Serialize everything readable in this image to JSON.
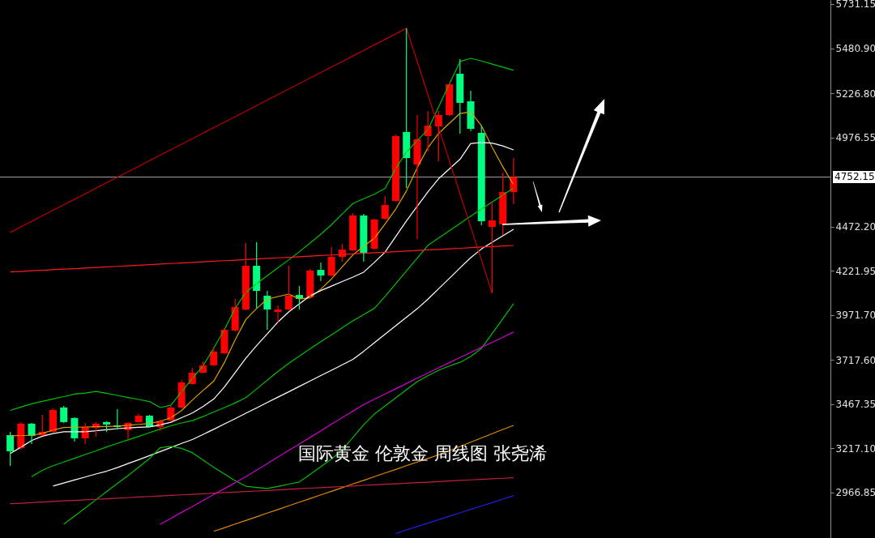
{
  "chart_data": {
    "type": "candlestick",
    "annotations": [
      "国际黄金 伦敦金 周线图 张尧浠"
    ],
    "categories": [
      null,
      null,
      null,
      null,
      null,
      null,
      null,
      null,
      null,
      null,
      null,
      null,
      null,
      null,
      null,
      null,
      null,
      null,
      null,
      null,
      null,
      null,
      null,
      null,
      null,
      null,
      null,
      null,
      null,
      null,
      null,
      null,
      null,
      null,
      null,
      null,
      null,
      null,
      null,
      null,
      null,
      null,
      null,
      null,
      null,
      null,
      null,
      null
    ],
    "ohlc": [
      [
        3292,
        3311,
        3118,
        3201
      ],
      [
        3219,
        3366,
        3210,
        3357
      ],
      [
        3357,
        3361,
        3242,
        3288
      ],
      [
        3292,
        3407,
        3288,
        3311
      ],
      [
        3311,
        3444,
        3305,
        3434
      ],
      [
        3448,
        3457,
        3361,
        3366
      ],
      [
        3389,
        3393,
        3256,
        3274
      ],
      [
        3274,
        3361,
        3242,
        3338
      ],
      [
        3334,
        3366,
        3283,
        3357
      ],
      [
        3366,
        3370,
        3311,
        3352
      ],
      [
        3347,
        3439,
        3324,
        3338
      ],
      [
        3320,
        3366,
        3270,
        3361
      ],
      [
        3366,
        3412,
        3361,
        3402
      ],
      [
        3402,
        3407,
        3334,
        3338
      ],
      [
        3338,
        3379,
        3315,
        3370
      ],
      [
        3375,
        3457,
        3370,
        3448
      ],
      [
        3448,
        3604,
        3444,
        3590
      ],
      [
        3581,
        3673,
        3577,
        3645
      ],
      [
        3645,
        3710,
        3641,
        3687
      ],
      [
        3687,
        3792,
        3683,
        3765
      ],
      [
        3755,
        3897,
        3751,
        3888
      ],
      [
        3884,
        4063,
        3879,
        4017
      ],
      [
        4003,
        4379,
        3998,
        4250
      ],
      [
        4250,
        4383,
        4012,
        4108
      ],
      [
        4081,
        4108,
        3888,
        4003
      ],
      [
        3989,
        4026,
        3930,
        4003
      ],
      [
        4003,
        4250,
        3998,
        4081
      ],
      [
        4085,
        4136,
        4003,
        4063
      ],
      [
        4072,
        4232,
        4068,
        4223
      ],
      [
        4227,
        4269,
        4163,
        4195
      ],
      [
        4195,
        4356,
        4191,
        4300
      ],
      [
        4300,
        4374,
        4273,
        4342
      ],
      [
        4337,
        4548,
        4333,
        4535
      ],
      [
        4535,
        4544,
        4273,
        4324
      ],
      [
        4347,
        4517,
        4342,
        4512
      ],
      [
        4516,
        4645,
        4512,
        4594
      ],
      [
        4617,
        4993,
        4613,
        4984
      ],
      [
        5007,
        5594,
        4691,
        4860
      ],
      [
        4823,
        5103,
        4402,
        4966
      ],
      [
        4984,
        5126,
        4897,
        5043
      ],
      [
        5039,
        5126,
        4842,
        5103
      ],
      [
        5103,
        5286,
        5098,
        5277
      ],
      [
        5337,
        5419,
        4998,
        5172
      ],
      [
        5181,
        5241,
        5011,
        5025
      ],
      [
        5002,
        5043,
        4480,
        4503
      ],
      [
        4470,
        4608,
        4095,
        4507
      ],
      [
        4484,
        4778,
        4425,
        4668
      ],
      [
        4668,
        4860,
        4599,
        4752.15
      ]
    ],
    "colors": [
      "#00ff80",
      "#ff0000",
      "#00ff80",
      "#ff0000",
      "#ff0000",
      "#00ff80",
      "#00ff80",
      "#ff0000",
      "#ff0000",
      "#00ff80",
      "#00ff80",
      "#ff0000",
      "#ff0000",
      "#00ff80",
      "#ff0000",
      "#ff0000",
      "#ff0000",
      "#ff0000",
      "#ff0000",
      "#ff0000",
      "#ff0000",
      "#ff0000",
      "#ff0000",
      "#00ff80",
      "#00ff80",
      "#ff0000",
      "#ff0000",
      "#00ff80",
      "#ff0000",
      "#00ff80",
      "#ff0000",
      "#ff0000",
      "#ff0000",
      "#00ff80",
      "#ff0000",
      "#ff0000",
      "#ff0000",
      "#00ff80",
      "#ff0000",
      "#ff0000",
      "#ff0000",
      "#ff0000",
      "#00ff80",
      "#00ff80",
      "#00ff80",
      "#ff0000",
      "#ff0000",
      "#ff0000"
    ],
    "series": [
      {
        "type": "line",
        "color": "#e0a000",
        "values": [
          3288,
          3290,
          3291,
          3302,
          3321,
          3335,
          3337,
          3338,
          3340,
          3341,
          3343,
          3348,
          3353,
          3358,
          3370,
          3391,
          3431,
          3490,
          3545,
          3597,
          3703,
          3831,
          3946,
          4008,
          4061,
          4076,
          4090,
          4063,
          4069,
          4118,
          4176,
          4244,
          4312,
          4360,
          4406,
          4487,
          4571,
          4674,
          4805,
          4918,
          4999,
          5056,
          5112,
          5121,
          5043,
          4921,
          4810,
          4709
        ]
      },
      {
        "type": "line",
        "color": "#00c000",
        "values": [
          3432,
          3451,
          3469,
          3483,
          3497,
          3510,
          3524,
          3530,
          3539,
          3529,
          3517,
          3505,
          3494,
          3482,
          3448,
          3461,
          3537,
          3612,
          3684,
          3784,
          3889,
          4009,
          4100,
          4148,
          4194,
          4239,
          4283,
          4330,
          4379,
          4428,
          4483,
          4543,
          4602,
          4630,
          4655,
          4688,
          4801,
          4894,
          4958,
          5021,
          5149,
          5278,
          5406,
          5424,
          5409,
          5391,
          5374,
          5357
        ]
      },
      {
        "type": "line",
        "color": "#ffffff",
        "values": [
          3188,
          3224,
          3261,
          3286,
          3301,
          3311,
          3311,
          3311,
          3317,
          3323,
          3329,
          3333,
          3336,
          3339,
          3350,
          3365,
          3391,
          3417,
          3454,
          3496,
          3564,
          3646,
          3727,
          3798,
          3865,
          3932,
          3989,
          4035,
          4081,
          4110,
          4135,
          4161,
          4186,
          4214,
          4269,
          4328,
          4416,
          4504,
          4587,
          4668,
          4743,
          4798,
          4853,
          4942,
          4948,
          4944,
          4928,
          4906
        ]
      },
      {
        "type": "line",
        "color": "#00c000",
        "values": [
          null,
          null,
          3057,
          3093,
          3119,
          3140,
          3161,
          3182,
          3203,
          3225,
          3245,
          3265,
          3285,
          3306,
          3326,
          3345,
          3361,
          3374,
          3397,
          3423,
          3448,
          3474,
          3504,
          3553,
          3603,
          3652,
          3698,
          3739,
          3780,
          3821,
          3860,
          3900,
          3939,
          3974,
          4009,
          4077,
          4149,
          4221,
          4293,
          4365,
          4407,
          4449,
          4490,
          4531,
          4571,
          4611,
          4650,
          4690
        ]
      },
      {
        "type": "line",
        "color": "#ffffff",
        "values": [
          null,
          null,
          null,
          null,
          3004,
          3021,
          3038,
          3055,
          3072,
          3088,
          3108,
          3131,
          3153,
          3176,
          3199,
          3222,
          3245,
          3267,
          3296,
          3325,
          3355,
          3385,
          3416,
          3446,
          3477,
          3507,
          3537,
          3568,
          3598,
          3629,
          3659,
          3690,
          3721,
          3766,
          3815,
          3863,
          3911,
          3959,
          4007,
          4061,
          4120,
          4179,
          4238,
          4296,
          4345,
          4383,
          4420,
          4457
        ]
      },
      {
        "type": "line",
        "color": "#00c000",
        "values": [
          null,
          null,
          null,
          null,
          null,
          2788,
          2834,
          2880,
          2926,
          2972,
          3018,
          3063,
          3111,
          3159,
          3221,
          3229,
          3217,
          3193,
          3151,
          3110,
          3072,
          3034,
          3003,
          2996,
          2990,
          3002,
          3015,
          3027,
          3070,
          3113,
          3157,
          3208,
          3279,
          3350,
          3411,
          3457,
          3503,
          3549,
          3595,
          3628,
          3659,
          3683,
          3704,
          3737,
          3783,
          3867,
          3951,
          4035
        ]
      },
      {
        "type": "line",
        "color": "#d000d0",
        "values": [
          null,
          null,
          null,
          null,
          null,
          null,
          null,
          null,
          null,
          null,
          null,
          null,
          null,
          null,
          2787,
          2821,
          2855,
          2888,
          2922,
          2956,
          2989,
          3023,
          3057,
          3094,
          3131,
          3168,
          3205,
          3242,
          3279,
          3316,
          3354,
          3391,
          3428,
          3465,
          3495,
          3525,
          3554,
          3584,
          3614,
          3643,
          3673,
          3702,
          3731,
          3760,
          3789,
          3817,
          3846,
          3875
        ]
      },
      {
        "type": "line",
        "color": "#e08a00",
        "values": [
          null,
          null,
          null,
          null,
          null,
          null,
          null,
          null,
          null,
          null,
          null,
          null,
          null,
          null,
          null,
          null,
          null,
          null,
          null,
          2748,
          2768,
          2789,
          2809,
          2830,
          2851,
          2871,
          2892,
          2913,
          2933,
          2954,
          2974,
          2995,
          3016,
          3036,
          3057,
          3078,
          3098,
          3119,
          3140,
          3160,
          3181,
          3204,
          3228,
          3252,
          3276,
          3300,
          3324,
          3347
        ]
      },
      {
        "type": "line",
        "color": "#2020e0",
        "values": [
          null,
          null,
          null,
          null,
          null,
          null,
          null,
          null,
          null,
          null,
          null,
          null,
          null,
          null,
          null,
          null,
          null,
          null,
          null,
          null,
          null,
          null,
          null,
          null,
          null,
          null,
          null,
          null,
          null,
          null,
          null,
          null,
          null,
          null,
          null,
          null,
          2736,
          2756,
          2775,
          2794,
          2814,
          2833,
          2852,
          2872,
          2891,
          2910,
          2930,
          2949
        ]
      },
      {
        "type": "line",
        "color": "#ff1a1a",
        "values": [
          4215,
          4218,
          4222,
          4225,
          4228,
          4231,
          4234,
          4237,
          4241,
          4244,
          4247,
          4250,
          4253,
          4257,
          4260,
          4263,
          4266,
          4269,
          4273,
          4276,
          4279,
          4282,
          4285,
          4289,
          4292,
          4295,
          4298,
          4301,
          4305,
          4308,
          4311,
          4314,
          4317,
          4321,
          4324,
          4327,
          4330,
          4333,
          4337,
          4340,
          4343,
          4346,
          4349,
          4353,
          4356,
          4359,
          4362,
          4365
        ]
      },
      {
        "type": "line",
        "color": "#c00000",
        "values": [
          4439,
          4470,
          4501,
          4533,
          4564,
          4595,
          4626,
          4657,
          4689,
          4720,
          4751,
          4782,
          4813,
          4845,
          4876,
          4907,
          4938,
          4969,
          5001,
          5032,
          5063,
          5094,
          5125,
          5157,
          5188,
          5219,
          5250,
          5281,
          5313,
          5344,
          5375,
          5406,
          5437,
          5469,
          5500,
          5531,
          5562,
          5594,
          5407,
          5219,
          5032,
          4845,
          4657,
          4470,
          4282,
          4095,
          null,
          null
        ]
      },
      {
        "type": "line",
        "color": "#c02040",
        "values": [
          2904,
          2907,
          2910,
          2913,
          2917,
          2920,
          2923,
          2926,
          2929,
          2932,
          2935,
          2938,
          2942,
          2945,
          2948,
          2951,
          2954,
          2957,
          2960,
          2964,
          2967,
          2970,
          2973,
          2976,
          2979,
          2982,
          2986,
          2989,
          2992,
          2995,
          2998,
          3001,
          3004,
          3008,
          3011,
          3014,
          3017,
          3020,
          3023,
          3026,
          3029,
          3033,
          3036,
          3039,
          3042,
          3045,
          3048,
          3051
        ]
      }
    ],
    "ref_lines": [
      {
        "axis": "y",
        "value": 4752.15,
        "label": "4752.15",
        "color": "#a0a0a0"
      }
    ],
    "ylim": [
      2710,
      5754
    ],
    "yticks": [
      5731.15,
      {
        "value": 5480.9,
        "label": "5480.90"
      },
      {
        "value": 5226.8,
        "label": "5226.80"
      },
      4976.55,
      {
        "value": 4472.2,
        "label": "4472.20"
      },
      4221.95,
      {
        "value": 3971.7,
        "label": "3971.70"
      },
      {
        "value": 3717.6,
        "label": "3717.60"
      },
      3467.35,
      {
        "value": 3217.1,
        "label": "3217.10"
      },
      2966.85
    ],
    "tick_labels": "y",
    "grid": false
  }
}
